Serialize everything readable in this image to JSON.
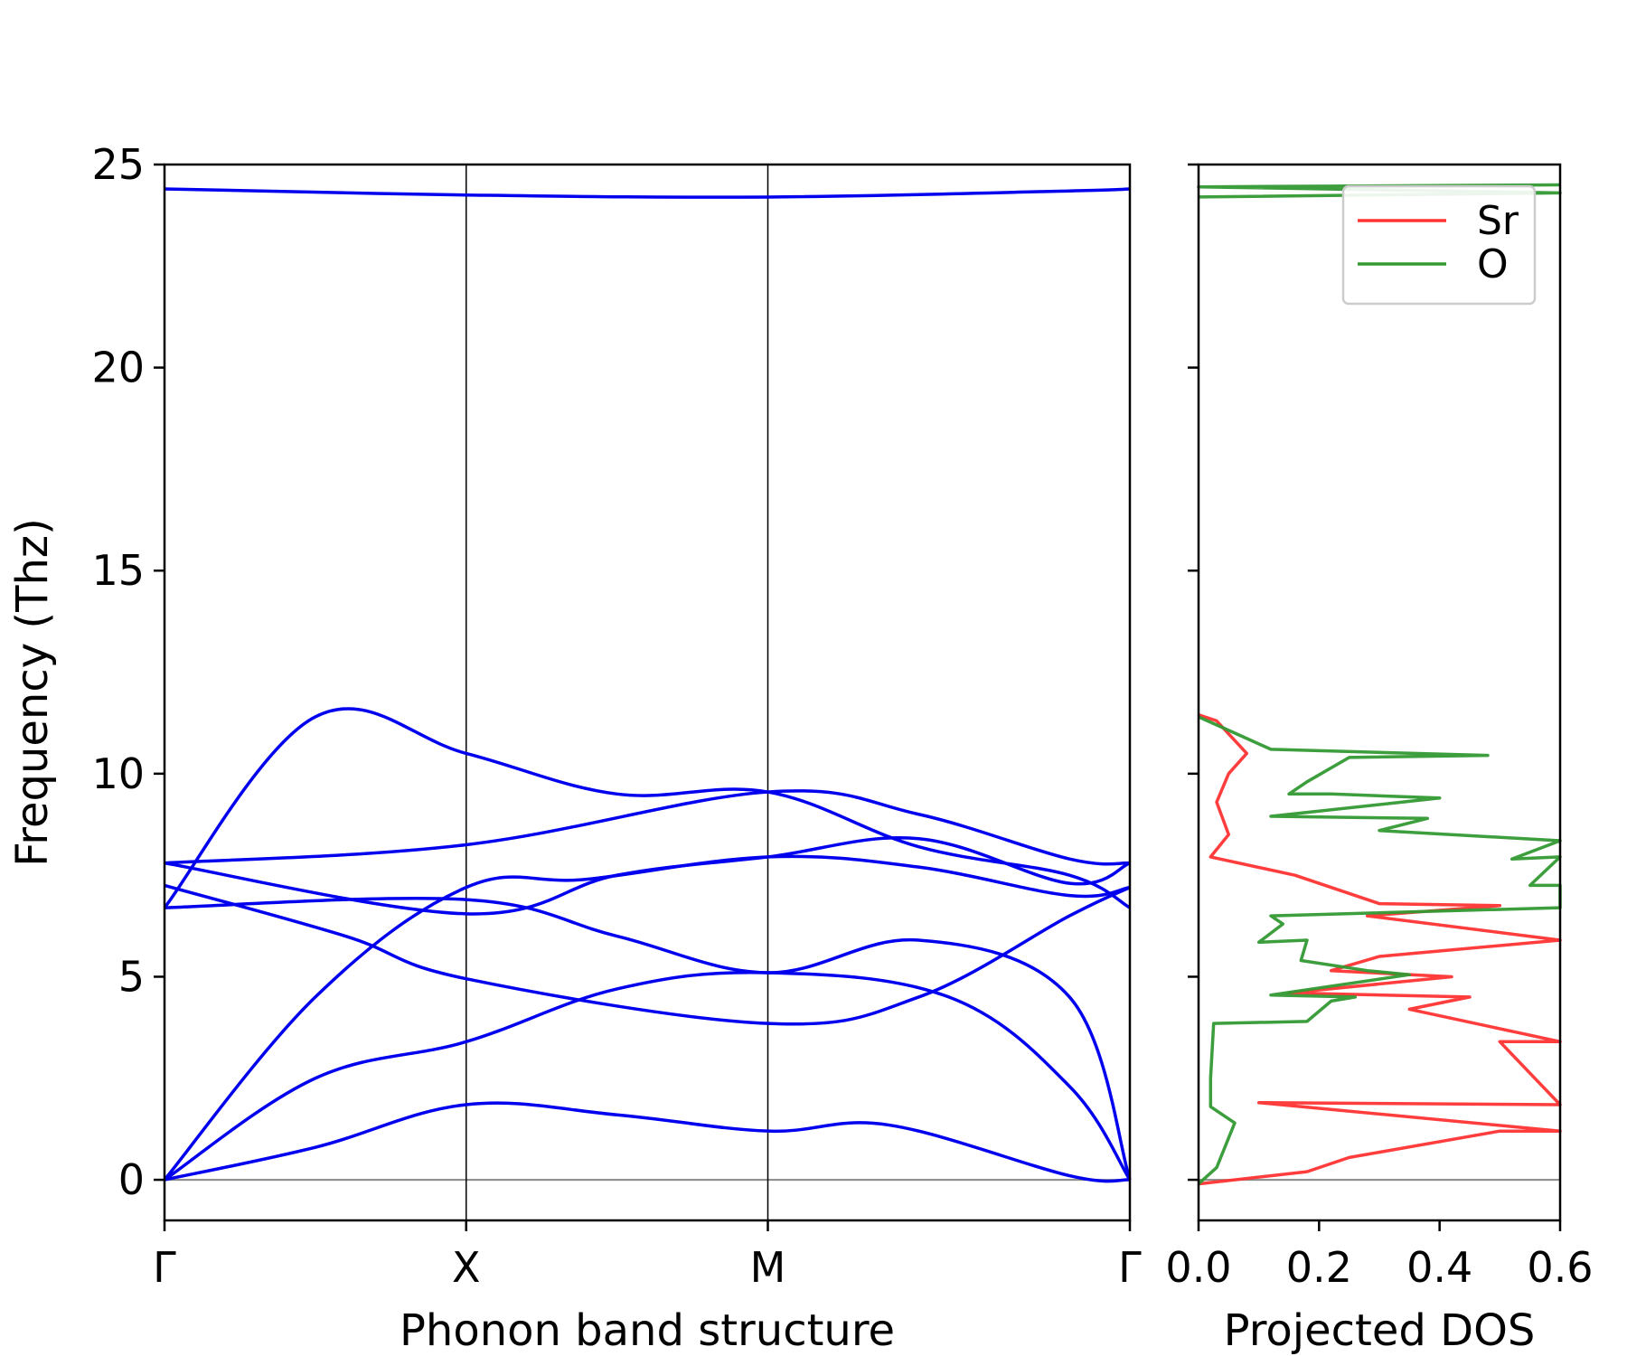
{
  "chart_data": [
    {
      "type": "line",
      "name": "phonon-band-structure",
      "xlabel": "Phonon band structure",
      "ylabel": "Frequency (Thz)",
      "ylim": [
        -1,
        25
      ],
      "yticks": [
        0,
        5,
        10,
        15,
        20,
        25
      ],
      "x_labels": [
        "Γ",
        "X",
        "M",
        "Γ"
      ],
      "line_color": "#0000ee",
      "zero_line_color": "#888888",
      "series": [
        {
          "name": "band-1",
          "points": [
            [
              0,
              0
            ],
            [
              0.5,
              0.8
            ],
            [
              1,
              1.85
            ],
            [
              1.5,
              1.6
            ],
            [
              2,
              1.2
            ],
            [
              2.4,
              1.35
            ],
            [
              3,
              0.1
            ],
            [
              3.2,
              0
            ]
          ]
        },
        {
          "name": "band-2",
          "points": [
            [
              0,
              0
            ],
            [
              0.5,
              2.5
            ],
            [
              1,
              3.4
            ],
            [
              1.5,
              4.7
            ],
            [
              2,
              5.1
            ],
            [
              2.6,
              4.5
            ],
            [
              3,
              2.3
            ],
            [
              3.2,
              0
            ]
          ]
        },
        {
          "name": "band-3",
          "points": [
            [
              0,
              0
            ],
            [
              0.5,
              4.5
            ],
            [
              1,
              7.2
            ],
            [
              1.4,
              7.4
            ],
            [
              2,
              7.95
            ],
            [
              2.5,
              7.7
            ],
            [
              3,
              7.0
            ],
            [
              3.2,
              7.2
            ]
          ]
        },
        {
          "name": "band-4",
          "points": [
            [
              0,
              6.7
            ],
            [
              1,
              6.9
            ],
            [
              1.5,
              6.0
            ],
            [
              2,
              5.1
            ],
            [
              2.5,
              5.9
            ],
            [
              3,
              4.5
            ],
            [
              3.2,
              0
            ]
          ]
        },
        {
          "name": "band-5",
          "points": [
            [
              0,
              7.25
            ],
            [
              0.6,
              6.0
            ],
            [
              1,
              4.95
            ],
            [
              2,
              3.85
            ],
            [
              2.5,
              4.5
            ],
            [
              3,
              6.5
            ],
            [
              3.2,
              7.2
            ]
          ]
        },
        {
          "name": "band-6",
          "points": [
            [
              0,
              7.8
            ],
            [
              1,
              6.55
            ],
            [
              1.5,
              7.5
            ],
            [
              2,
              7.95
            ],
            [
              2.5,
              8.4
            ],
            [
              3,
              7.3
            ],
            [
              3.2,
              7.8
            ]
          ]
        },
        {
          "name": "band-7",
          "points": [
            [
              0,
              6.7
            ],
            [
              0.5,
              11.4
            ],
            [
              1,
              10.5
            ],
            [
              1.5,
              9.5
            ],
            [
              2,
              9.55
            ],
            [
              2.5,
              8.2
            ],
            [
              3,
              7.5
            ],
            [
              3.2,
              6.7
            ]
          ]
        },
        {
          "name": "band-8",
          "points": [
            [
              0,
              7.8
            ],
            [
              1,
              8.25
            ],
            [
              2,
              9.55
            ],
            [
              2.5,
              9.0
            ],
            [
              3,
              7.9
            ],
            [
              3.2,
              7.8
            ]
          ]
        },
        {
          "name": "band-9",
          "points": [
            [
              0,
              24.4
            ],
            [
              1,
              24.25
            ],
            [
              2,
              24.2
            ],
            [
              3,
              24.35
            ],
            [
              3.2,
              24.4
            ]
          ]
        }
      ]
    },
    {
      "type": "line",
      "name": "projected-dos",
      "xlabel": "Projected DOS",
      "xlim": [
        0,
        0.6
      ],
      "xticks": [
        "0.0",
        "0.2",
        "0.4",
        "0.6"
      ],
      "ylim": [
        -1,
        25
      ],
      "legend_position": "upper-right",
      "series": [
        {
          "name": "Sr",
          "color": "#ff3333",
          "points": [
            [
              0,
              -0.1
            ],
            [
              0.18,
              0.2
            ],
            [
              0.25,
              0.55
            ],
            [
              0.5,
              1.2
            ],
            [
              0.6,
              1.2
            ],
            [
              0.1,
              1.9
            ],
            [
              0.6,
              1.85
            ],
            [
              0.5,
              3.4
            ],
            [
              0.6,
              3.4
            ],
            [
              0.35,
              4.2
            ],
            [
              0.45,
              4.5
            ],
            [
              0.15,
              4.6
            ],
            [
              0.42,
              5.0
            ],
            [
              0.22,
              5.15
            ],
            [
              0.3,
              5.5
            ],
            [
              0.6,
              5.9
            ],
            [
              0.28,
              6.5
            ],
            [
              0.5,
              6.75
            ],
            [
              0.3,
              6.8
            ],
            [
              0.16,
              7.5
            ],
            [
              0.02,
              7.95
            ],
            [
              0.05,
              8.5
            ],
            [
              0.03,
              9.3
            ],
            [
              0.05,
              10.0
            ],
            [
              0.08,
              10.5
            ],
            [
              0.03,
              11.3
            ],
            [
              0.0,
              11.45
            ]
          ]
        },
        {
          "name": "O",
          "color": "#339933",
          "points": [
            [
              0,
              -0.1
            ],
            [
              0.03,
              0.3
            ],
            [
              0.06,
              1.4
            ],
            [
              0.02,
              1.8
            ],
            [
              0.02,
              2.5
            ],
            [
              0.025,
              3.85
            ],
            [
              0.18,
              3.9
            ],
            [
              0.22,
              4.4
            ],
            [
              0.26,
              4.5
            ],
            [
              0.12,
              4.55
            ],
            [
              0.35,
              5.05
            ],
            [
              0.28,
              5.15
            ],
            [
              0.17,
              5.4
            ],
            [
              0.18,
              5.9
            ],
            [
              0.1,
              5.85
            ],
            [
              0.14,
              6.3
            ],
            [
              0.12,
              6.5
            ],
            [
              0.6,
              6.7
            ],
            [
              0.6,
              7.25
            ],
            [
              0.55,
              7.25
            ],
            [
              0.6,
              7.95
            ],
            [
              0.52,
              7.9
            ],
            [
              0.6,
              8.35
            ],
            [
              0.3,
              8.6
            ],
            [
              0.38,
              8.9
            ],
            [
              0.12,
              8.95
            ],
            [
              0.4,
              9.4
            ],
            [
              0.22,
              9.5
            ],
            [
              0.15,
              9.5
            ],
            [
              0.18,
              9.8
            ],
            [
              0.25,
              10.4
            ],
            [
              0.48,
              10.45
            ],
            [
              0.12,
              10.6
            ],
            [
              0.06,
              11.0
            ],
            [
              0.0,
              11.4
            ]
          ]
        },
        {
          "name": "O-high",
          "color": "#339933",
          "points": [
            [
              0,
              24.2
            ],
            [
              0.6,
              24.3
            ],
            [
              0,
              24.45
            ],
            [
              0.6,
              24.5
            ]
          ]
        }
      ]
    }
  ]
}
